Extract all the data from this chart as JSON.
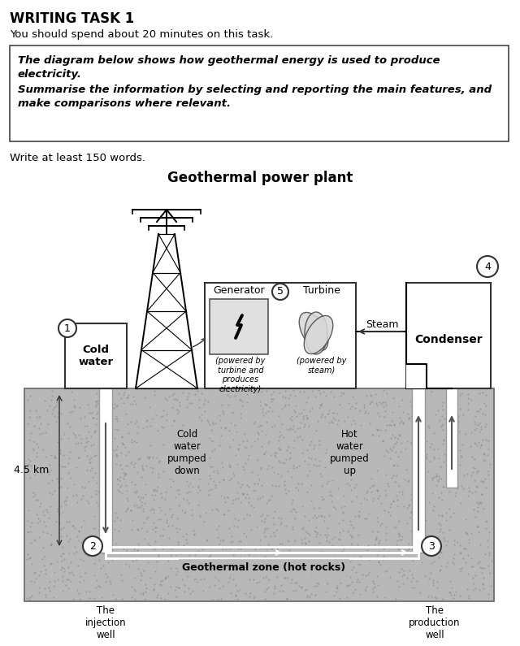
{
  "title": "WRITING TASK 1",
  "subtitle": "You should spend about 20 minutes on this task.",
  "box_line1": "The diagram below shows how geothermal energy is used to produce",
  "box_line2": "electricity.",
  "box_line3": "Summarise the information by selecting and reporting the main features, and",
  "box_line4": "make comparisons where relevant.",
  "write_text": "Write at least 150 words.",
  "diagram_title": "Geothermal power plant",
  "label_cold_water": "Cold\nwater",
  "label_cold_pumped": "Cold\nwater\npumped\ndown",
  "label_hot_pumped": "Hot\nwater\npumped\nup",
  "label_generator": "Generator",
  "label_turbine": "Turbine",
  "label_gen_sub": "(powered by\nturbine and\nproduces\nelectricity)",
  "label_turb_sub": "(powered by\nsteam)",
  "label_steam": "Steam",
  "label_condenser": "Condenser",
  "label_geo_zone": "Geothermal zone (hot rocks)",
  "label_45km": "4.5 km",
  "label_injection": "The\ninjection\nwell",
  "label_production": "The\nproduction\nwell",
  "num_1": "1",
  "num_2": "2",
  "num_3": "3",
  "num_4": "4",
  "num_5": "5",
  "bg": "#ffffff",
  "ground_fill": "#b8b8b8",
  "dot_color": "#888888"
}
